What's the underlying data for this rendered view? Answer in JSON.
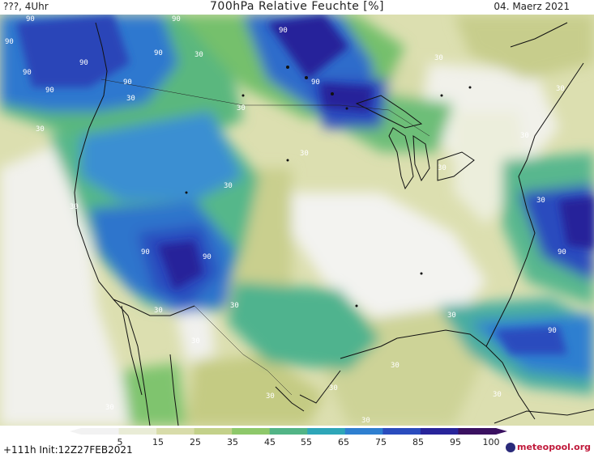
{
  "header": {
    "left_text": "???, 4Uhr",
    "title": "700hPa Relative Feuchte [%]",
    "date": "04. Maerz 2021"
  },
  "footer": {
    "init_text": "+111h Init:12Z27FEB2021",
    "brand": "meteopool.org"
  },
  "colorbar": {
    "labels": [
      "5",
      "15",
      "25",
      "35",
      "45",
      "55",
      "65",
      "75",
      "85",
      "95",
      "100"
    ],
    "colors": [
      "#f2f2f2",
      "#e9ecd6",
      "#d8dcaa",
      "#c3d18a",
      "#8ec86a",
      "#52b486",
      "#2ea6b8",
      "#2e7fd0",
      "#2a4cbe",
      "#28249a",
      "#3a1060"
    ]
  },
  "contour_labels": [
    "90",
    "90",
    "90",
    "90",
    "90",
    "90",
    "90",
    "90",
    "90",
    "90",
    "90",
    "90",
    "90",
    "90",
    "30",
    "30",
    "30",
    "30",
    "30",
    "30",
    "30",
    "30",
    "30",
    "30",
    "30",
    "30",
    "30",
    "30",
    "30",
    "30",
    "30",
    "30",
    "30",
    "30",
    "30",
    "30"
  ]
}
